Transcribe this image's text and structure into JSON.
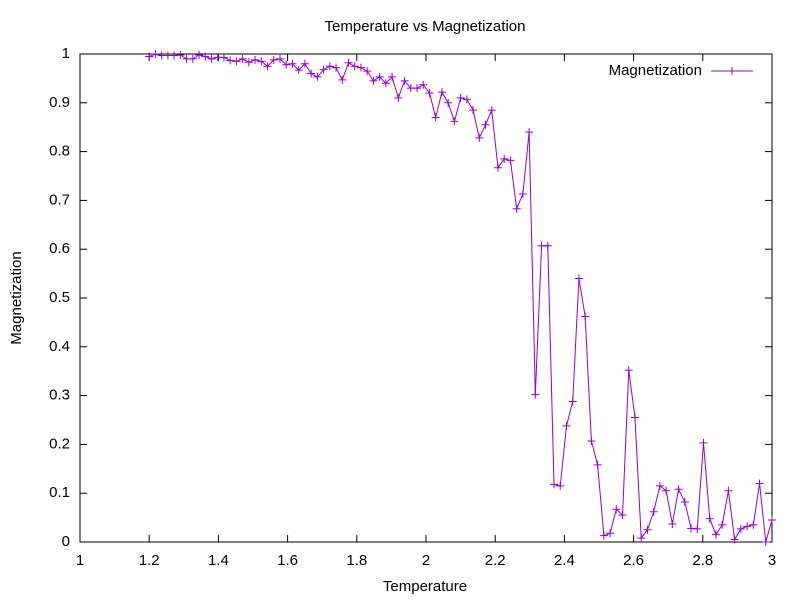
{
  "chart_data": {
    "type": "line",
    "title": "Temperature vs Magnetization",
    "x_label": "Temperature",
    "y_label": "Magnetization",
    "x": [
      1.2,
      1.218,
      1.236,
      1.254,
      1.272,
      1.29,
      1.308,
      1.326,
      1.344,
      1.362,
      1.38,
      1.398,
      1.416,
      1.434,
      1.452,
      1.47,
      1.488,
      1.506,
      1.524,
      1.542,
      1.56,
      1.578,
      1.596,
      1.614,
      1.632,
      1.65,
      1.668,
      1.686,
      1.704,
      1.722,
      1.74,
      1.758,
      1.776,
      1.794,
      1.812,
      1.83,
      1.848,
      1.866,
      1.884,
      1.902,
      1.92,
      1.938,
      1.956,
      1.974,
      1.992,
      2.01,
      2.028,
      2.046,
      2.064,
      2.082,
      2.1,
      2.118,
      2.136,
      2.154,
      2.172,
      2.19,
      2.208,
      2.226,
      2.244,
      2.262,
      2.28,
      2.298,
      2.316,
      2.334,
      2.352,
      2.37,
      2.388,
      2.406,
      2.424,
      2.442,
      2.46,
      2.478,
      2.496,
      2.514,
      2.532,
      2.55,
      2.568,
      2.586,
      2.604,
      2.622,
      2.64,
      2.658,
      2.676,
      2.694,
      2.712,
      2.73,
      2.748,
      2.766,
      2.784,
      2.802,
      2.82,
      2.838,
      2.856,
      2.874,
      2.892,
      2.91,
      2.928,
      2.946,
      2.964,
      2.982,
      3.0
    ],
    "series": [
      {
        "name": "Magnetization",
        "color": "#9400d3",
        "values": [
          0.995,
          1.0,
          0.997,
          0.997,
          0.997,
          0.998,
          0.99,
          0.99,
          0.998,
          0.995,
          0.99,
          0.993,
          0.993,
          0.987,
          0.985,
          0.99,
          0.983,
          0.988,
          0.985,
          0.975,
          0.988,
          0.99,
          0.978,
          0.98,
          0.967,
          0.98,
          0.96,
          0.953,
          0.968,
          0.975,
          0.972,
          0.947,
          0.982,
          0.975,
          0.972,
          0.965,
          0.945,
          0.953,
          0.94,
          0.953,
          0.91,
          0.945,
          0.93,
          0.93,
          0.937,
          0.92,
          0.87,
          0.922,
          0.9,
          0.862,
          0.91,
          0.907,
          0.885,
          0.828,
          0.855,
          0.885,
          0.767,
          0.785,
          0.782,
          0.683,
          0.713,
          0.84,
          0.302,
          0.607,
          0.607,
          0.118,
          0.115,
          0.238,
          0.288,
          0.54,
          0.462,
          0.207,
          0.158,
          0.013,
          0.018,
          0.067,
          0.055,
          0.352,
          0.255,
          0.008,
          0.025,
          0.062,
          0.115,
          0.105,
          0.037,
          0.108,
          0.082,
          0.028,
          0.027,
          0.203,
          0.048,
          0.015,
          0.035,
          0.105,
          0.005,
          0.027,
          0.032,
          0.035,
          0.12,
          0,
          0.045
        ]
      }
    ],
    "xlim": [
      1,
      3
    ],
    "xticks": [
      1,
      1.2,
      1.4,
      1.6,
      1.8,
      2,
      2.2,
      2.4,
      2.6,
      2.8,
      3
    ],
    "ylim": [
      0,
      1
    ],
    "yticks": [
      0,
      0.1,
      0.2,
      0.3,
      0.4,
      0.5,
      0.6,
      0.7,
      0.8,
      0.9,
      1
    ],
    "legend": "top right",
    "grid": false
  }
}
